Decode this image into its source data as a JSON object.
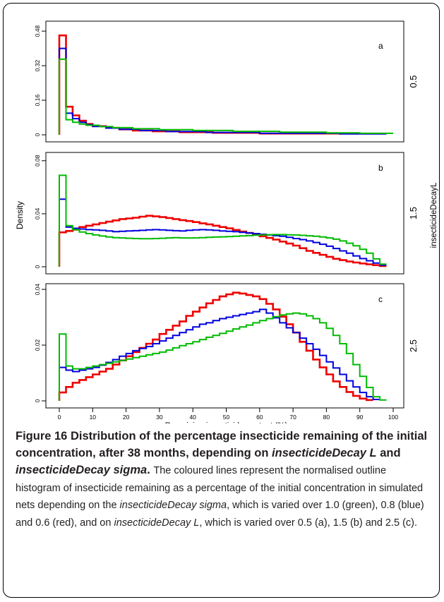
{
  "chart_data": {
    "type": "line",
    "step": true,
    "xlabel": "Remaining insecticide content (%)",
    "ylabel": "Density",
    "strip_label": "insecticideDecayL",
    "xlim": [
      0,
      100
    ],
    "x_ticks": [
      0,
      10,
      20,
      30,
      40,
      50,
      60,
      70,
      80,
      90,
      100
    ],
    "colors": {
      "sigma_1.0": "#00bb00",
      "sigma_0.8": "#0000dd",
      "sigma_0.6": "#ee0000"
    },
    "panels": [
      {
        "tag": "a",
        "strip": "0.5",
        "ylim": [
          0,
          0.5
        ],
        "y_ticks": [
          0,
          0.16,
          0.32,
          0.48
        ],
        "y_tick_labels": [
          "0",
          "0.16",
          "0.32",
          "0.48"
        ],
        "bin_width": 2,
        "series": [
          {
            "color": "red",
            "points": [
              [
                0,
                0
              ],
              [
                0,
                0.46
              ],
              [
                2,
                0.46
              ],
              [
                2,
                0.13
              ],
              [
                4,
                0.13
              ],
              [
                4,
                0.09
              ],
              [
                6,
                0.09
              ],
              [
                6,
                0.065
              ],
              [
                8,
                0.065
              ],
              [
                8,
                0.05
              ],
              [
                10,
                0.05
              ],
              [
                10,
                0.04
              ],
              [
                14,
                0.04
              ],
              [
                14,
                0.032
              ],
              [
                18,
                0.032
              ],
              [
                18,
                0.025
              ],
              [
                22,
                0.025
              ],
              [
                22,
                0.02
              ],
              [
                28,
                0.02
              ],
              [
                28,
                0.016
              ],
              [
                36,
                0.016
              ],
              [
                36,
                0.012
              ],
              [
                46,
                0.012
              ],
              [
                46,
                0.009
              ],
              [
                60,
                0.009
              ],
              [
                60,
                0.006
              ],
              [
                86,
                0.006
              ]
            ]
          },
          {
            "color": "blue",
            "points": [
              [
                0,
                0
              ],
              [
                0,
                0.4
              ],
              [
                2,
                0.4
              ],
              [
                2,
                0.1
              ],
              [
                4,
                0.1
              ],
              [
                4,
                0.075
              ],
              [
                6,
                0.075
              ],
              [
                6,
                0.058
              ],
              [
                8,
                0.058
              ],
              [
                8,
                0.047
              ],
              [
                10,
                0.047
              ],
              [
                10,
                0.039
              ],
              [
                14,
                0.039
              ],
              [
                14,
                0.031
              ],
              [
                18,
                0.031
              ],
              [
                18,
                0.025
              ],
              [
                24,
                0.025
              ],
              [
                24,
                0.02
              ],
              [
                32,
                0.02
              ],
              [
                32,
                0.015
              ],
              [
                44,
                0.015
              ],
              [
                44,
                0.011
              ],
              [
                60,
                0.011
              ],
              [
                60,
                0.007
              ],
              [
                84,
                0.007
              ],
              [
                84,
                0.004
              ],
              [
                98,
                0.004
              ]
            ]
          },
          {
            "color": "green",
            "points": [
              [
                0,
                0
              ],
              [
                0,
                0.35
              ],
              [
                2,
                0.35
              ],
              [
                2,
                0.07
              ],
              [
                4,
                0.07
              ],
              [
                4,
                0.058
              ],
              [
                6,
                0.058
              ],
              [
                6,
                0.05
              ],
              [
                8,
                0.05
              ],
              [
                8,
                0.044
              ],
              [
                12,
                0.044
              ],
              [
                12,
                0.038
              ],
              [
                16,
                0.038
              ],
              [
                16,
                0.033
              ],
              [
                22,
                0.033
              ],
              [
                22,
                0.028
              ],
              [
                30,
                0.028
              ],
              [
                30,
                0.024
              ],
              [
                40,
                0.024
              ],
              [
                40,
                0.02
              ],
              [
                52,
                0.02
              ],
              [
                52,
                0.016
              ],
              [
                66,
                0.016
              ],
              [
                66,
                0.012
              ],
              [
                80,
                0.012
              ],
              [
                80,
                0.009
              ],
              [
                90,
                0.009
              ],
              [
                90,
                0.007
              ],
              [
                100,
                0.007
              ]
            ]
          }
        ]
      },
      {
        "tag": "b",
        "strip": "1.5",
        "ylim": [
          0,
          0.082
        ],
        "y_ticks": [
          0,
          0.04,
          0.08
        ],
        "y_tick_labels": [
          "0",
          "0.04",
          "0.08"
        ],
        "bin_width": 2,
        "series": [
          {
            "color": "red",
            "values": [
              0.026,
              0.027,
              0.028,
              0.03,
              0.031,
              0.032,
              0.033,
              0.034,
              0.035,
              0.036,
              0.0365,
              0.037,
              0.0378,
              0.0385,
              0.038,
              0.0375,
              0.0368,
              0.036,
              0.0352,
              0.0345,
              0.0337,
              0.0328,
              0.032,
              0.031,
              0.03,
              0.029,
              0.0278,
              0.0266,
              0.0255,
              0.0242,
              0.023,
              0.0218,
              0.0205,
              0.019,
              0.0175,
              0.016,
              0.014,
              0.012,
              0.0105,
              0.009,
              0.0075,
              0.006,
              0.005,
              0.004,
              0.0032,
              0.0025,
              0.0018,
              0.0012,
              0.0006
            ]
          },
          {
            "color": "blue",
            "values": [
              0.051,
              0.03,
              0.029,
              0.0285,
              0.028,
              0.0278,
              0.0275,
              0.027,
              0.0265,
              0.0268,
              0.027,
              0.0272,
              0.0275,
              0.0278,
              0.028,
              0.0278,
              0.0275,
              0.0272,
              0.027,
              0.0275,
              0.0278,
              0.028,
              0.0278,
              0.0275,
              0.027,
              0.0268,
              0.0265,
              0.026,
              0.0255,
              0.025,
              0.0245,
              0.024,
              0.0235,
              0.023,
              0.0222,
              0.0213,
              0.0205,
              0.0195,
              0.0183,
              0.017,
              0.0155,
              0.0138,
              0.012,
              0.0102,
              0.0082,
              0.0062,
              0.0045,
              0.0028,
              0.0012
            ]
          },
          {
            "color": "green",
            "values": [
              0.069,
              0.031,
              0.028,
              0.0262,
              0.025,
              0.024,
              0.0232,
              0.0225,
              0.022,
              0.0218,
              0.0215,
              0.0213,
              0.0212,
              0.0212,
              0.0213,
              0.0215,
              0.0218,
              0.022,
              0.0218,
              0.0217,
              0.0218,
              0.022,
              0.0222,
              0.0224,
              0.0226,
              0.0228,
              0.023,
              0.0233,
              0.0235,
              0.0238,
              0.024,
              0.0242,
              0.0243,
              0.0243,
              0.0241,
              0.024,
              0.0237,
              0.0234,
              0.023,
              0.0225,
              0.0218,
              0.0208,
              0.0195,
              0.0178,
              0.0158,
              0.0132,
              0.0102,
              0.006,
              0.002
            ]
          }
        ]
      },
      {
        "tag": "c",
        "strip": "2.5",
        "ylim": [
          0,
          0.04
        ],
        "y_ticks": [
          0,
          0.02,
          0.04
        ],
        "y_tick_labels": [
          "0",
          "0.02",
          "0.04"
        ],
        "bin_width": 2,
        "series": [
          {
            "color": "red",
            "values": [
              0.003,
              0.005,
              0.0065,
              0.0075,
              0.0085,
              0.0095,
              0.0105,
              0.0115,
              0.013,
              0.0145,
              0.016,
              0.0175,
              0.019,
              0.0205,
              0.022,
              0.024,
              0.0255,
              0.027,
              0.0285,
              0.0305,
              0.032,
              0.0335,
              0.035,
              0.0362,
              0.0375,
              0.0382,
              0.0388,
              0.0385,
              0.038,
              0.0375,
              0.0365,
              0.0348,
              0.0328,
              0.0302,
              0.0275,
              0.0245,
              0.0212,
              0.018,
              0.0148,
              0.012,
              0.0095,
              0.007,
              0.005,
              0.0032,
              0.0018,
              0.0008,
              0.0003
            ]
          },
          {
            "color": "blue",
            "values": [
              0.012,
              0.011,
              0.0105,
              0.011,
              0.0115,
              0.012,
              0.0128,
              0.0138,
              0.0148,
              0.016,
              0.017,
              0.018,
              0.0188,
              0.0195,
              0.0205,
              0.0215,
              0.0225,
              0.0235,
              0.0245,
              0.0255,
              0.0265,
              0.0275,
              0.028,
              0.0288,
              0.0295,
              0.03,
              0.0305,
              0.031,
              0.0315,
              0.032,
              0.0328,
              0.0315,
              0.0298,
              0.028,
              0.0262,
              0.0245,
              0.0225,
              0.0205,
              0.0185,
              0.0163,
              0.014,
              0.0118,
              0.0095,
              0.0072,
              0.005,
              0.003,
              0.0015,
              0.0005
            ]
          },
          {
            "color": "green",
            "values": [
              0.024,
              0.0125,
              0.0115,
              0.0115,
              0.012,
              0.0125,
              0.013,
              0.0135,
              0.014,
              0.0145,
              0.015,
              0.0155,
              0.016,
              0.0165,
              0.017,
              0.0175,
              0.0182,
              0.019,
              0.0198,
              0.0205,
              0.0212,
              0.022,
              0.0228,
              0.0235,
              0.0242,
              0.025,
              0.0258,
              0.0265,
              0.0272,
              0.028,
              0.0288,
              0.0295,
              0.0302,
              0.0308,
              0.0312,
              0.0315,
              0.0312,
              0.0305,
              0.0295,
              0.028,
              0.026,
              0.0235,
              0.0205,
              0.017,
              0.013,
              0.0088,
              0.0048,
              0.0015,
              0.0003
            ]
          }
        ]
      }
    ]
  },
  "caption": {
    "figure_label": "Figure 16",
    "title_part1": "Distribution of the percentage insecticide remaining of the initial concentration, after 38 months, depending on",
    "title_em1": "insecticideDecay L",
    "title_and": "and",
    "title_em2": "insecticideDecay sigma",
    "title_end": ".",
    "body_part1": "The coloured lines represent the normalised outline histogram of insecticide remaining as a percentage of the initial concentration in simulated nets depending on the",
    "body_em1": "insecticideDecay sigma",
    "body_part2": ", which is varied over 1.0 (green), 0.8 (blue) and 0.6 (red), and on",
    "body_em2": "insecticideDecay L",
    "body_part3": ", which is varied over 0.5 (a), 1.5 (b) and 2.5 (c)."
  }
}
